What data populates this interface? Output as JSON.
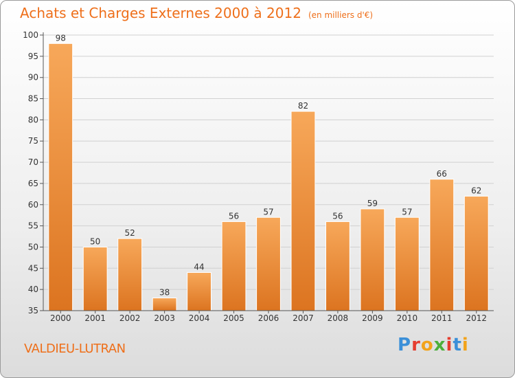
{
  "header": {
    "title": "Achats et Charges Externes 2000 à 2012",
    "unit": "(en milliers d'€)"
  },
  "footer": {
    "commune": "VALDIEU-LUTRAN",
    "logo_text": "Proxiti"
  },
  "colors": {
    "accent": "#ee6f1a",
    "bar_top": "#f7a85a",
    "bar_bottom": "#dc7420",
    "grid": "#d0d0d0",
    "axis": "#555555"
  },
  "chart_data": {
    "type": "bar",
    "title": "Achats et Charges Externes 2000 à 2012",
    "subtitle": "(en milliers d'€)",
    "categories": [
      "2000",
      "2001",
      "2002",
      "2003",
      "2004",
      "2005",
      "2006",
      "2007",
      "2008",
      "2009",
      "2010",
      "2011",
      "2012"
    ],
    "values": [
      98,
      50,
      52,
      38,
      44,
      56,
      57,
      82,
      56,
      59,
      57,
      66,
      62
    ],
    "ylim": [
      35,
      100
    ],
    "yticks": [
      35,
      40,
      45,
      50,
      55,
      60,
      65,
      70,
      75,
      80,
      85,
      90,
      95,
      100
    ],
    "grid": true,
    "data_labels": true,
    "legend": "none"
  }
}
